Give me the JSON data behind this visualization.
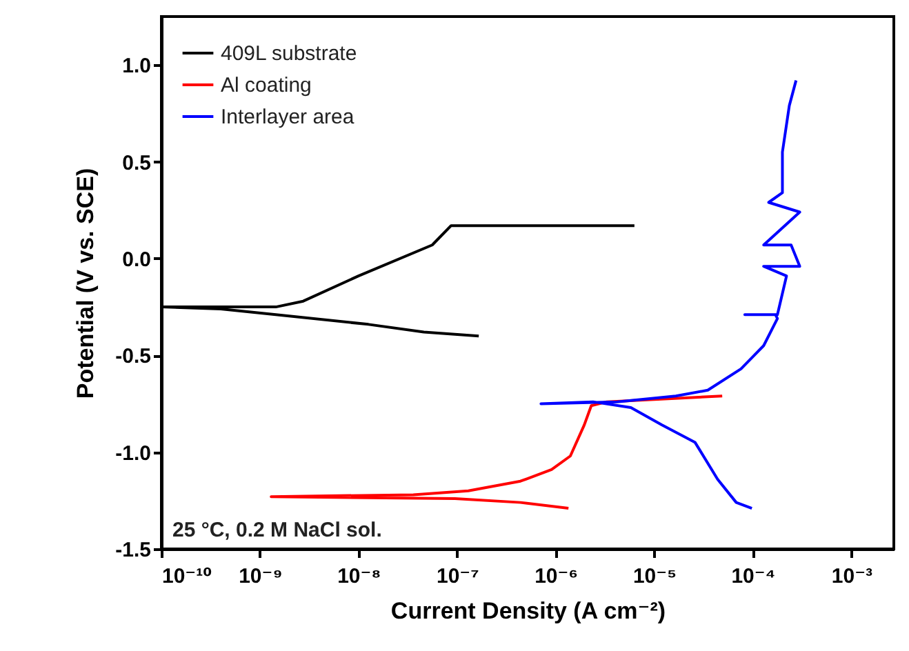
{
  "chart_data": {
    "type": "line",
    "log": "x",
    "xlabel": "Current Density (A cm⁻²)",
    "ylabel": "Potential (V vs. SCE)",
    "xlim": [
      1e-10,
      0.0027
    ],
    "ylim": [
      -1.5,
      1.25
    ],
    "xticks": [
      {
        "value": 1e-10,
        "label": "10⁻¹⁰"
      },
      {
        "value": 1e-09,
        "label": "10⁻⁹"
      },
      {
        "value": 1e-08,
        "label": "10⁻⁸"
      },
      {
        "value": 1e-07,
        "label": "10⁻⁷"
      },
      {
        "value": 1e-06,
        "label": "10⁻⁶"
      },
      {
        "value": 1e-05,
        "label": "10⁻⁵"
      },
      {
        "value": 0.0001,
        "label": "10⁻⁴"
      },
      {
        "value": 0.001,
        "label": "10⁻³"
      }
    ],
    "yticks": [
      {
        "value": -1.5,
        "label": "-1.5"
      },
      {
        "value": -1,
        "label": "-1.0"
      },
      {
        "value": -0.5,
        "label": "-0.5"
      },
      {
        "value": 0,
        "label": "0.0"
      },
      {
        "value": 0.5,
        "label": "0.5"
      },
      {
        "value": 1,
        "label": "1.0"
      }
    ],
    "legend": "top left",
    "grid": false,
    "line_style": "solid",
    "marker": "none",
    "annotations": [
      "25 °C, 0.2 M NaCl sol."
    ],
    "series": [
      {
        "name": "409L substrate",
        "color": "#000000",
        "x": [
          1.66e-07,
          4.6e-08,
          1.26e-08,
          1.45e-09,
          4e-10,
          1e-10,
          1.45e-09,
          2.75e-09,
          1e-08,
          5.6e-08,
          8.7e-08,
          6.3e-06
        ],
        "values": [
          -0.4,
          -0.38,
          -0.34,
          -0.29,
          -0.26,
          -0.25,
          -0.25,
          -0.22,
          -0.09,
          0.07,
          0.17,
          0.17
        ]
      },
      {
        "name": "Al coating",
        "color": "#ff0000",
        "x": [
          1.35e-06,
          4.4e-07,
          9.5e-08,
          1.3e-09,
          3.6e-08,
          1.3e-07,
          4.4e-07,
          9.1e-07,
          1.41e-06,
          1.95e-06,
          2.3e-06,
          3.3e-06,
          4.9e-05
        ],
        "values": [
          -1.29,
          -1.26,
          -1.24,
          -1.23,
          -1.22,
          -1.2,
          -1.15,
          -1.09,
          -1.02,
          -0.86,
          -0.76,
          -0.74,
          -0.71
        ]
      },
      {
        "name": "Interlayer area",
        "color": "#0000ff",
        "x": [
          9.8e-05,
          6.8e-05,
          4.4e-05,
          2.6e-05,
          1.2e-05,
          5.8e-06,
          2.4e-06,
          7.1e-07,
          4.2e-06,
          1.66e-05,
          3.5e-05,
          7.6e-05,
          0.000129,
          0.000178,
          0.00017,
          8.3e-05,
          0.000178,
          0.00022,
          0.000129,
          0.0003,
          0.000245,
          0.000129,
          0.0003,
          0.000145,
          0.0002,
          0.0002,
          0.000235,
          0.000275
        ],
        "values": [
          -1.29,
          -1.26,
          -1.14,
          -0.95,
          -0.86,
          -0.77,
          -0.74,
          -0.75,
          -0.74,
          -0.71,
          -0.68,
          -0.57,
          -0.45,
          -0.31,
          -0.29,
          -0.29,
          -0.29,
          -0.09,
          -0.04,
          -0.04,
          0.07,
          0.07,
          0.24,
          0.29,
          0.34,
          0.55,
          0.79,
          0.92
        ]
      }
    ]
  }
}
